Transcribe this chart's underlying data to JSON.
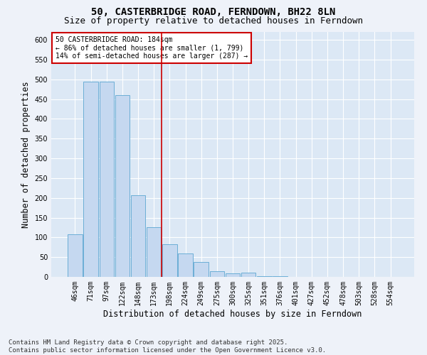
{
  "title_line1": "50, CASTERBRIDGE ROAD, FERNDOWN, BH22 8LN",
  "title_line2": "Size of property relative to detached houses in Ferndown",
  "xlabel": "Distribution of detached houses by size in Ferndown",
  "ylabel": "Number of detached properties",
  "categories": [
    "46sqm",
    "71sqm",
    "97sqm",
    "122sqm",
    "148sqm",
    "173sqm",
    "198sqm",
    "224sqm",
    "249sqm",
    "275sqm",
    "300sqm",
    "325sqm",
    "351sqm",
    "376sqm",
    "401sqm",
    "427sqm",
    "452sqm",
    "478sqm",
    "503sqm",
    "528sqm",
    "554sqm"
  ],
  "values": [
    107,
    495,
    495,
    460,
    207,
    125,
    82,
    59,
    38,
    14,
    9,
    10,
    2,
    1,
    0,
    0,
    0,
    0,
    0,
    0,
    0
  ],
  "bar_color": "#c5d8f0",
  "bar_edge_color": "#6baed6",
  "vline_x": 5.5,
  "vline_color": "#cc0000",
  "annotation_title": "50 CASTERBRIDGE ROAD: 184sqm",
  "annotation_line1": "← 86% of detached houses are smaller (1, 799)",
  "annotation_line2": "14% of semi-detached houses are larger (287) →",
  "annotation_box_color": "#ffffff",
  "annotation_box_edge": "#cc0000",
  "ylim": [
    0,
    620
  ],
  "yticks": [
    0,
    50,
    100,
    150,
    200,
    250,
    300,
    350,
    400,
    450,
    500,
    550,
    600
  ],
  "footer_line1": "Contains HM Land Registry data © Crown copyright and database right 2025.",
  "footer_line2": "Contains public sector information licensed under the Open Government Licence v3.0.",
  "bg_color": "#eef2f9",
  "plot_bg_color": "#dce8f5",
  "grid_color": "#ffffff",
  "title_fontsize": 10,
  "subtitle_fontsize": 9,
  "tick_fontsize": 7,
  "label_fontsize": 8.5,
  "footer_fontsize": 6.5
}
